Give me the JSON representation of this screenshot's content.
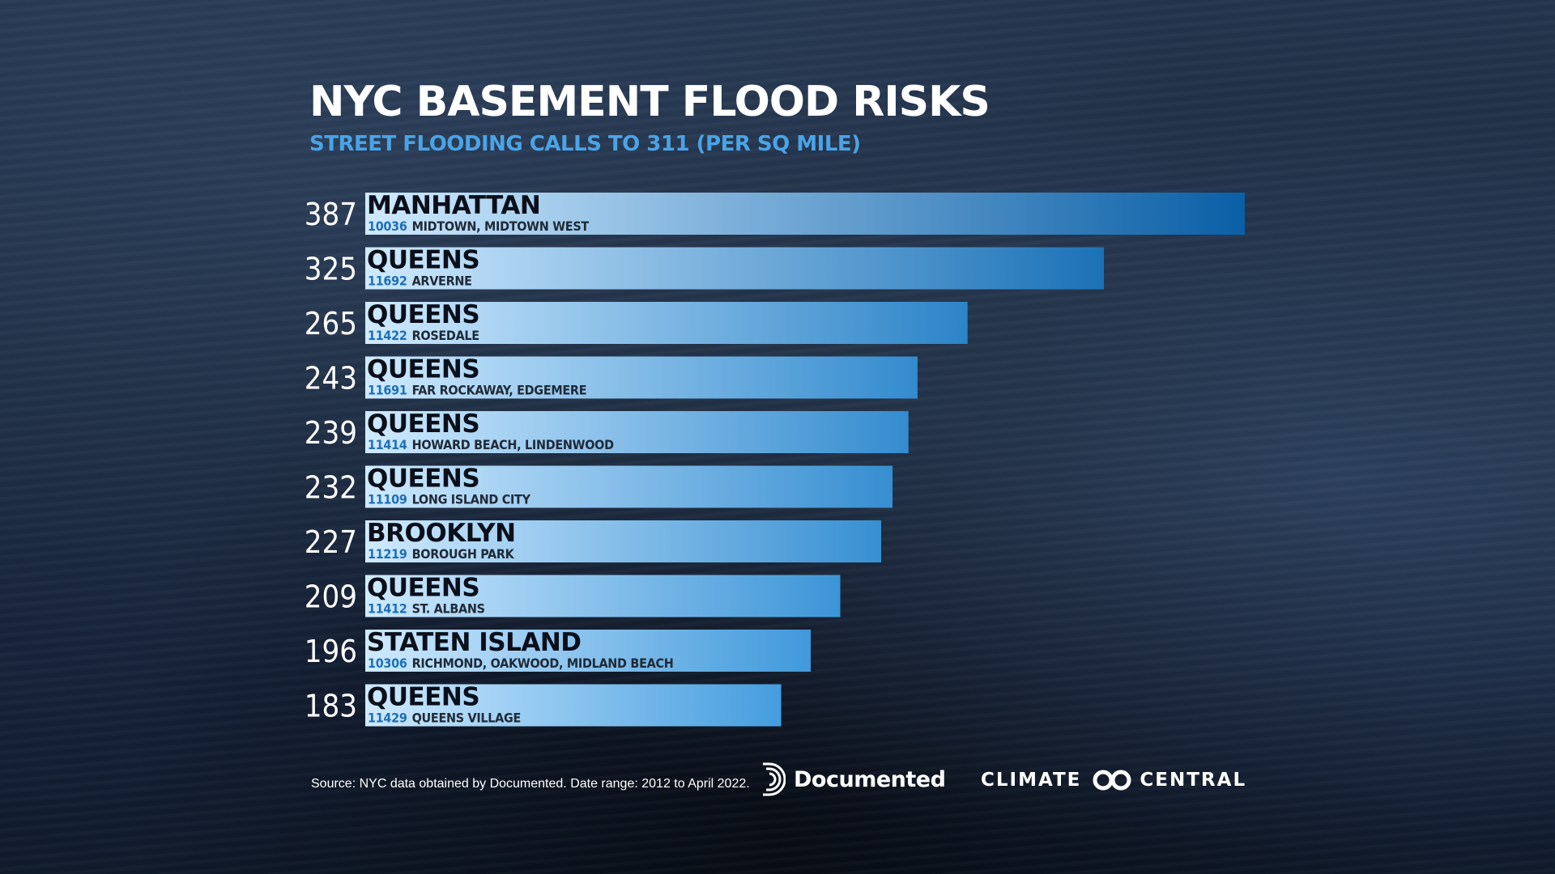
{
  "header": {
    "title": "NYC BASEMENT FLOOD RISKS",
    "subtitle": "STREET FLOODING CALLS TO 311 (PER SQ MILE)"
  },
  "colors": {
    "subtitle": "#4aa3e6",
    "zip": "#1f6fb5",
    "bar_light": "#cfeaff",
    "bar_dark": "#0a5fa6"
  },
  "chart_data": {
    "type": "bar",
    "orientation": "horizontal",
    "title": "NYC BASEMENT FLOOD RISKS",
    "subtitle": "STREET FLOODING CALLS TO 311 (PER SQ MILE)",
    "values": [
      387,
      325,
      265,
      243,
      239,
      232,
      227,
      209,
      196,
      183
    ],
    "categories": [
      {
        "borough": "MANHATTAN",
        "zip": "10036",
        "area": "MIDTOWN, MIDTOWN WEST"
      },
      {
        "borough": "QUEENS",
        "zip": "11692",
        "area": "ARVERNE"
      },
      {
        "borough": "QUEENS",
        "zip": "11422",
        "area": "ROSEDALE"
      },
      {
        "borough": "QUEENS",
        "zip": "11691",
        "area": "FAR ROCKAWAY, EDGEMERE"
      },
      {
        "borough": "QUEENS",
        "zip": "11414",
        "area": "HOWARD BEACH, LINDENWOOD"
      },
      {
        "borough": "QUEENS",
        "zip": "11109",
        "area": "LONG ISLAND CITY"
      },
      {
        "borough": "BROOKLYN",
        "zip": "11219",
        "area": "BOROUGH PARK"
      },
      {
        "borough": "QUEENS",
        "zip": "11412",
        "area": "ST. ALBANS"
      },
      {
        "borough": "STATEN ISLAND",
        "zip": "10306",
        "area": "RICHMOND, OAKWOOD, MIDLAND BEACH"
      },
      {
        "borough": "QUEENS",
        "zip": "11429",
        "area": "QUEENS VILLAGE"
      }
    ],
    "xlim": [
      0,
      387
    ],
    "grid": false,
    "legend": "none"
  },
  "footer": {
    "source": "Source: NYC data obtained by Documented. Date range: 2012 to April 2022.",
    "logo_documented": "Documented",
    "logo_documented_icon": "documented-logo-icon",
    "logo_climate_word1": "CLIMATE",
    "logo_climate_word2": "CENTRAL",
    "logo_climate_icon": "infinity-loop-icon"
  }
}
